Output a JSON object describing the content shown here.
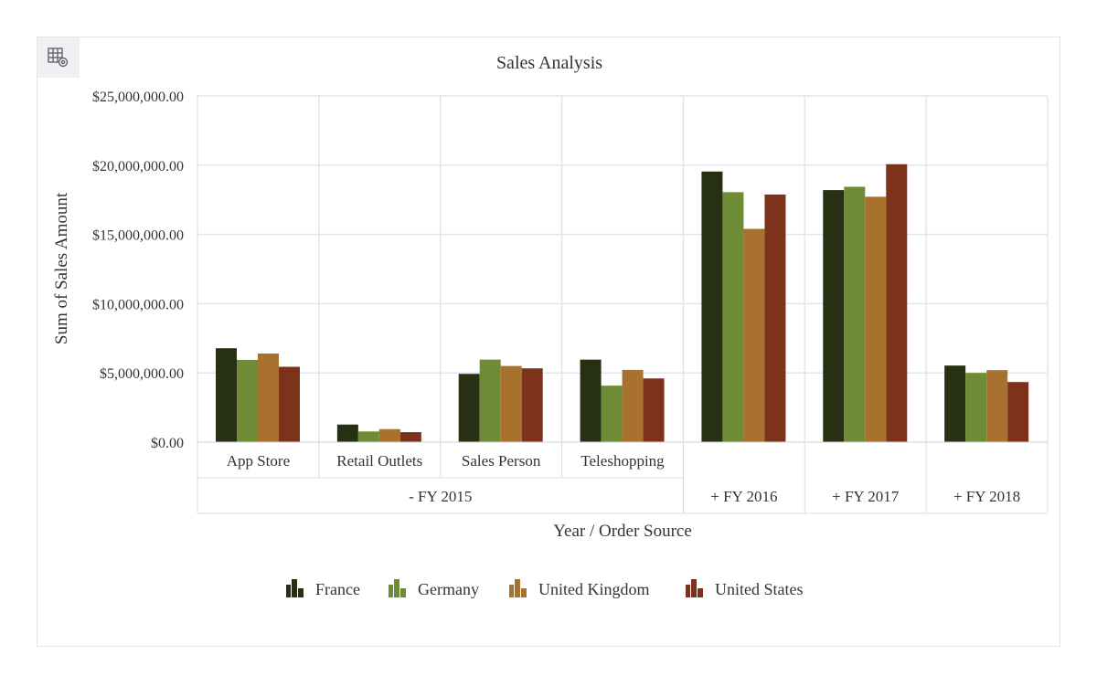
{
  "chart_data": {
    "type": "bar",
    "title": "Sales Analysis",
    "xlabel": "Year / Order Source",
    "ylabel": "Sum of Sales Amount",
    "ylim": [
      0,
      25000000
    ],
    "yticks": [
      "$0.00",
      "$5,000,000.00",
      "$10,000,000.00",
      "$15,000,000.00",
      "$20,000,000.00",
      "$25,000,000.00"
    ],
    "grid": true,
    "legend_position": "bottom",
    "categories": [
      {
        "label": "App Store",
        "group": "- FY 2015"
      },
      {
        "label": "Retail Outlets",
        "group": "- FY 2015"
      },
      {
        "label": "Sales Person",
        "group": "- FY 2015"
      },
      {
        "label": "Teleshopping",
        "group": "- FY 2015"
      },
      {
        "label": "+ FY 2016",
        "group": null
      },
      {
        "label": "+ FY 2017",
        "group": null
      },
      {
        "label": "+ FY 2018",
        "group": null
      }
    ],
    "groups": [
      "- FY 2015"
    ],
    "series": [
      {
        "name": "France",
        "color": "#283013",
        "values": [
          6780000,
          1270000,
          4930000,
          5960000,
          19540000,
          18200000,
          5530000
        ]
      },
      {
        "name": "Germany",
        "color": "#6e8b35",
        "values": [
          5940000,
          770000,
          5960000,
          4080000,
          18050000,
          18440000,
          5000000
        ]
      },
      {
        "name": "United Kingdom",
        "color": "#a8722e",
        "values": [
          6400000,
          940000,
          5500000,
          5220000,
          15400000,
          17720000,
          5200000
        ]
      },
      {
        "name": "United States",
        "color": "#7c321b",
        "values": [
          5440000,
          720000,
          5330000,
          4600000,
          17880000,
          20070000,
          4340000
        ]
      }
    ]
  },
  "toolbar": {
    "icon": "table-settings-icon"
  }
}
